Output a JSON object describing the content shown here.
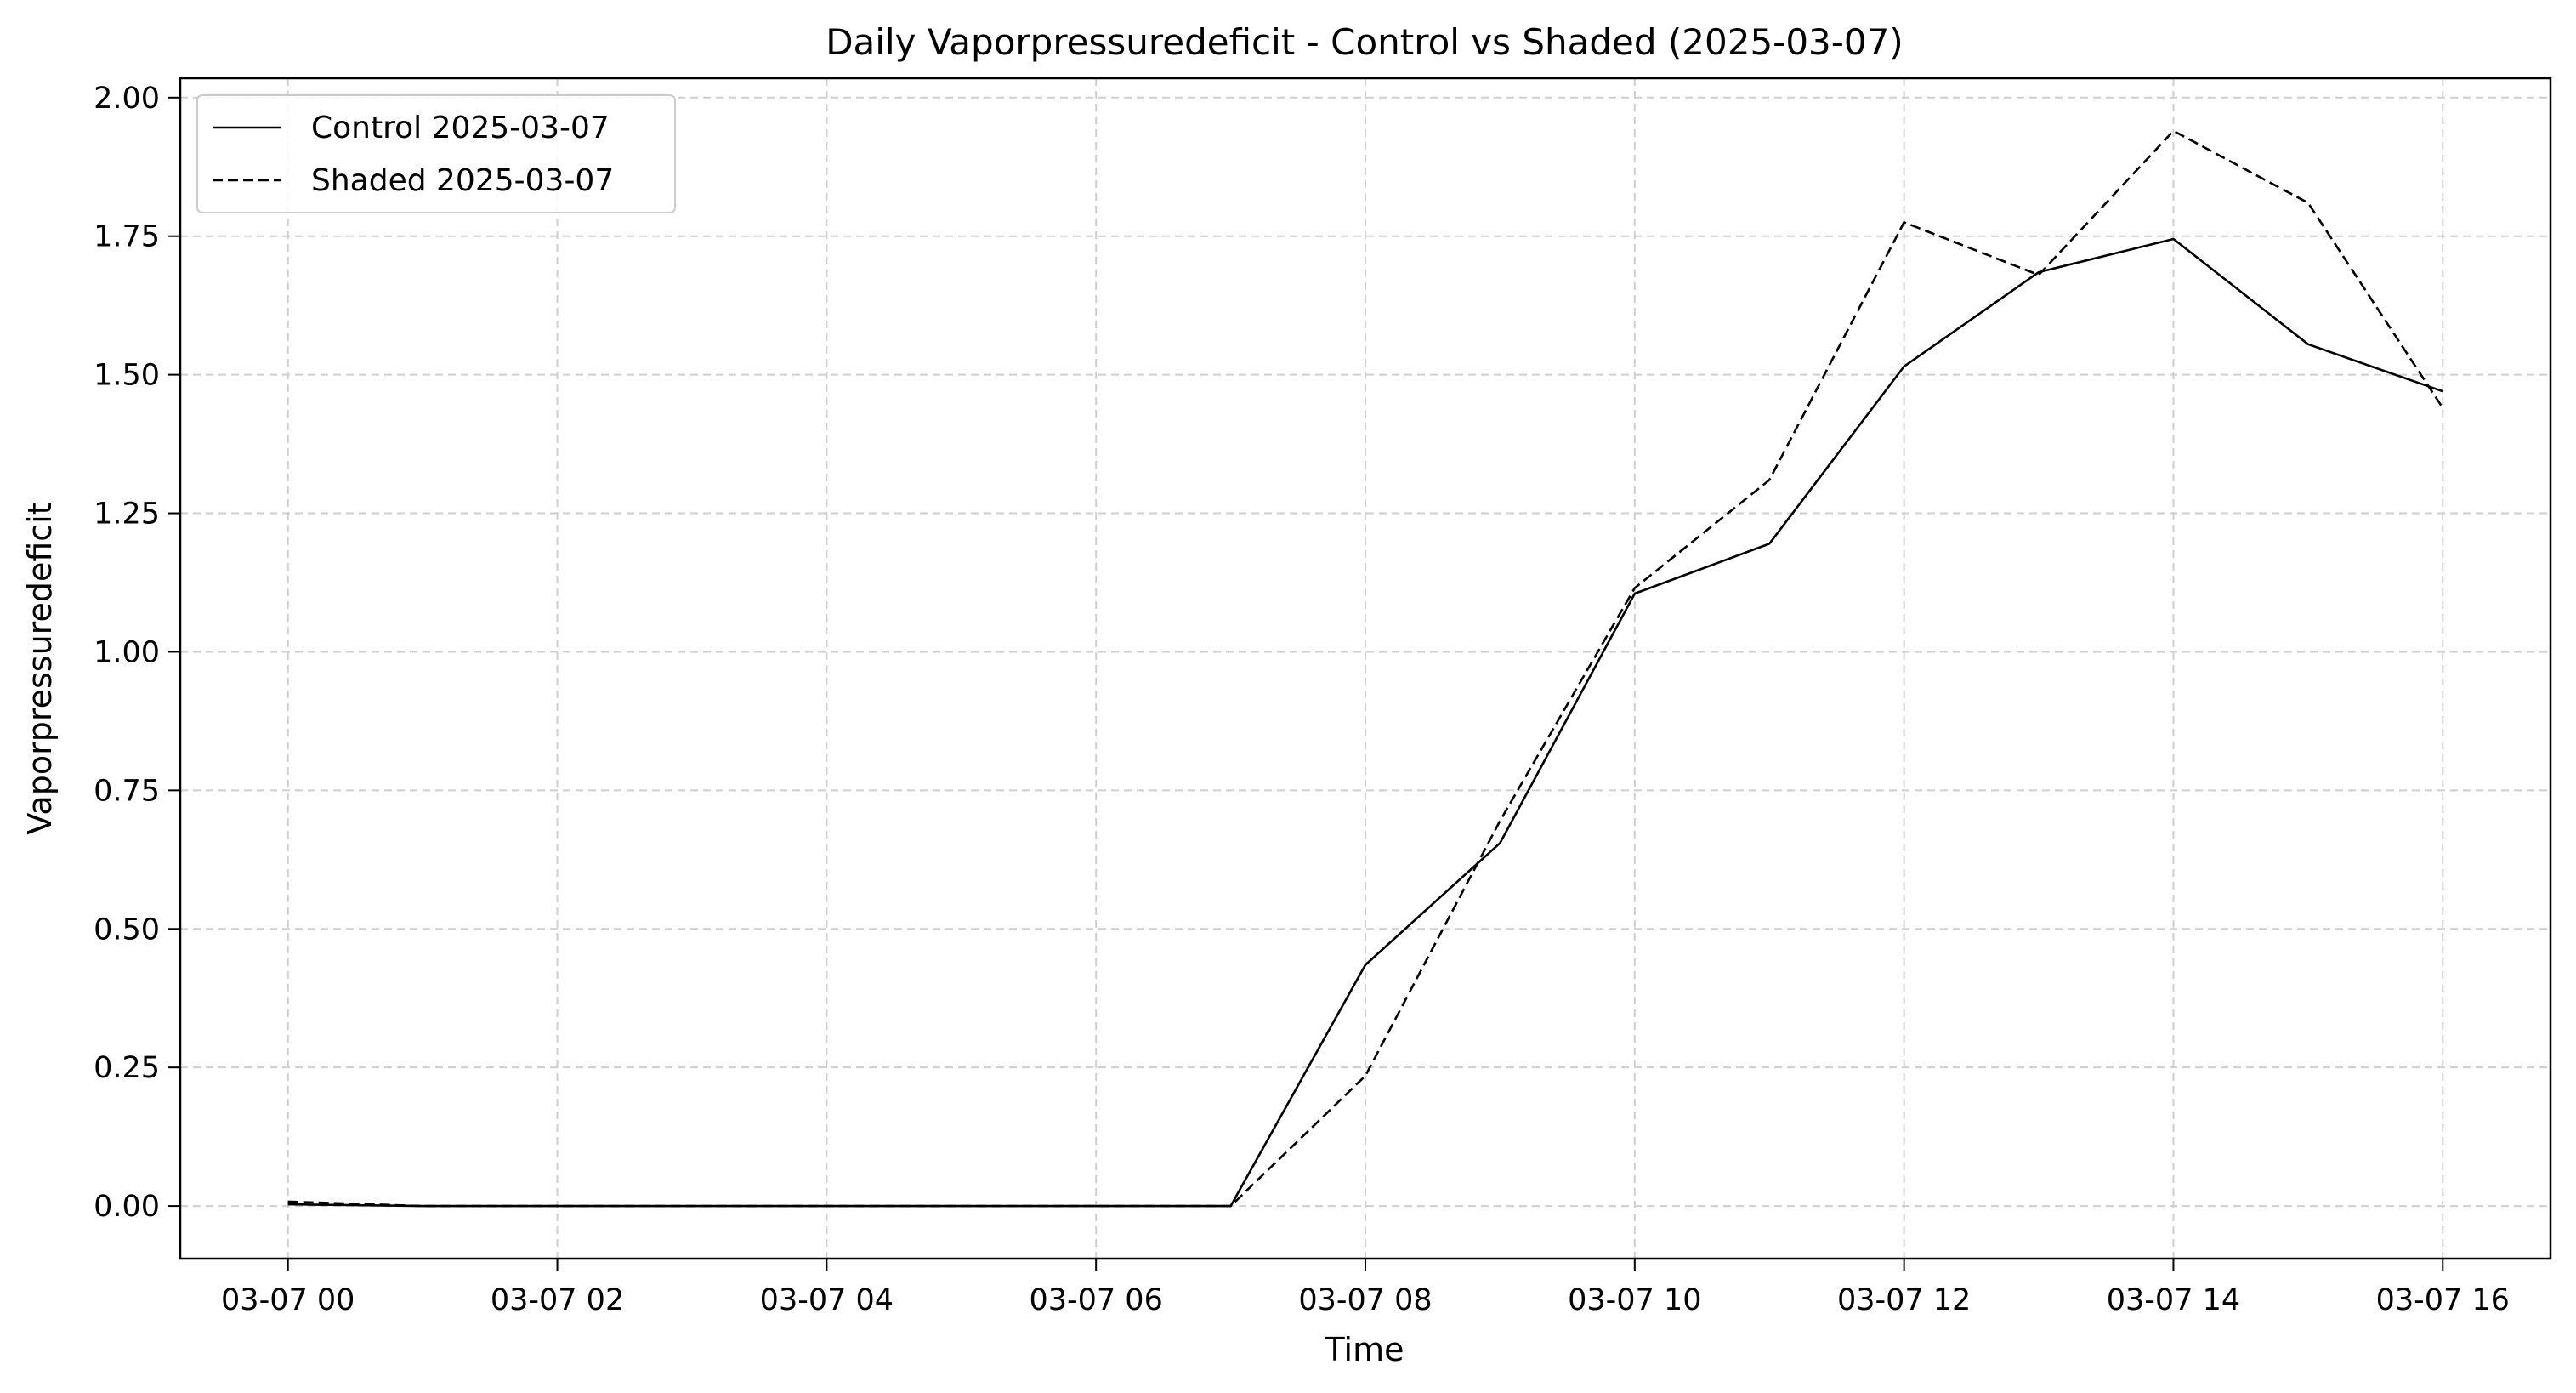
{
  "chart_data": {
    "type": "line",
    "title": "Daily Vaporpressuredeficit - Control vs Shaded (2025-03-07)",
    "xlabel": "Time",
    "ylabel": "Vaporpressuredeficit",
    "x": [
      0,
      1,
      2,
      3,
      4,
      5,
      6,
      7,
      8,
      9,
      10,
      11,
      12,
      13,
      14,
      15,
      16
    ],
    "xlim": [
      -0.8,
      16.8
    ],
    "ylim": [
      -0.095,
      2.035
    ],
    "xticks": [
      0,
      2,
      4,
      6,
      8,
      10,
      12,
      14,
      16
    ],
    "xtick_labels": [
      "03-07 00",
      "03-07 02",
      "03-07 04",
      "03-07 06",
      "03-07 08",
      "03-07 10",
      "03-07 12",
      "03-07 14",
      "03-07 16"
    ],
    "yticks": [
      0.0,
      0.25,
      0.5,
      0.75,
      1.0,
      1.25,
      1.5,
      1.75,
      2.0
    ],
    "ytick_labels": [
      "0.00",
      "0.25",
      "0.50",
      "0.75",
      "1.00",
      "1.25",
      "1.50",
      "1.75",
      "2.00"
    ],
    "grid": true,
    "legend_position": "top-left",
    "series": [
      {
        "name": "Control 2025-03-07",
        "style": "solid",
        "color": "#000000",
        "values": [
          0.003,
          0.0,
          0.0,
          0.0,
          0.0,
          0.0,
          0.0,
          0.0,
          0.435,
          0.655,
          1.105,
          1.195,
          1.515,
          1.685,
          1.745,
          1.555,
          1.47
        ]
      },
      {
        "name": "Shaded 2025-03-07",
        "style": "dashed",
        "color": "#000000",
        "values": [
          0.008,
          0.0,
          0.0,
          0.0,
          0.0,
          0.0,
          0.0,
          0.0,
          0.235,
          0.695,
          1.115,
          1.31,
          1.775,
          1.68,
          1.94,
          1.81,
          1.44
        ]
      }
    ]
  }
}
